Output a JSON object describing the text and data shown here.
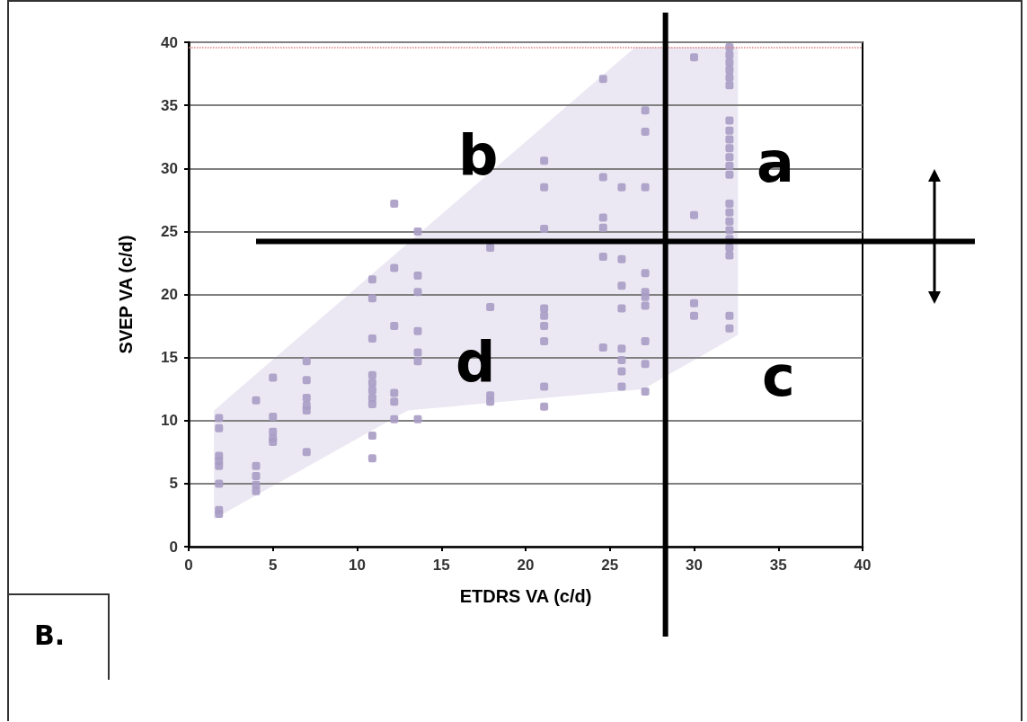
{
  "chart_data": {
    "type": "scatter",
    "xlabel": "ETDRS VA (c/d)",
    "ylabel": "SVEP VA (c/d)",
    "x": [
      1.8,
      1.8,
      1.8,
      1.8,
      1.8,
      1.8,
      1.8,
      1.8,
      4,
      4,
      4,
      4,
      4,
      5,
      5,
      5,
      5,
      5,
      7,
      7,
      7,
      7,
      7,
      7,
      10.9,
      10.9,
      10.9,
      10.9,
      10.9,
      10.9,
      10.9,
      10.9,
      10.9,
      10.9,
      12.2,
      12.2,
      12.2,
      12.2,
      12.2,
      12.2,
      13.6,
      13.6,
      13.6,
      13.6,
      13.6,
      13.6,
      13.6,
      17.9,
      17.9,
      17.9,
      17.9,
      21.1,
      21.1,
      21.1,
      21.1,
      21.1,
      21.1,
      21.1,
      21.1,
      21.1,
      24.6,
      24.6,
      24.6,
      24.6,
      24.6,
      24.6,
      25.7,
      25.7,
      25.7,
      25.7,
      25.7,
      25.7,
      25.7,
      25.7,
      27.1,
      27.1,
      27.1,
      27.1,
      27.1,
      27.1,
      27.1,
      27.1,
      27.1,
      27.1,
      30,
      30,
      30,
      30,
      32.1,
      32.1,
      32.1,
      32.1,
      32.1,
      32.1,
      32.1,
      32.1,
      32.1,
      32.1,
      32.1,
      32.1,
      32.1,
      32.1,
      32.1,
      32.1,
      32.1,
      32.1,
      32.1,
      32.1,
      32.1,
      32.1
    ],
    "values": [
      10.2,
      9.4,
      7.2,
      6.8,
      6.4,
      5.0,
      2.9,
      2.6,
      11.6,
      6.4,
      5.6,
      4.9,
      4.4,
      13.4,
      10.3,
      9.1,
      8.6,
      8.3,
      14.7,
      13.2,
      11.8,
      11.2,
      10.8,
      7.5,
      21.2,
      19.7,
      16.5,
      13.6,
      13.0,
      12.4,
      11.8,
      11.3,
      8.8,
      7.0,
      27.2,
      22.1,
      17.5,
      12.2,
      11.5,
      10.1,
      25.0,
      21.5,
      20.2,
      17.1,
      15.4,
      14.7,
      10.1,
      23.7,
      19.0,
      12.0,
      11.5,
      30.6,
      28.5,
      25.2,
      18.9,
      18.3,
      17.5,
      16.3,
      12.7,
      11.1,
      37.1,
      29.3,
      26.1,
      25.3,
      23.0,
      15.8,
      28.5,
      22.8,
      20.7,
      18.9,
      15.7,
      14.8,
      13.9,
      12.7,
      34.6,
      32.9,
      28.5,
      21.7,
      20.2,
      19.8,
      19.1,
      16.3,
      14.5,
      12.3,
      38.8,
      26.3,
      19.3,
      18.3,
      39.6,
      39.0,
      38.4,
      37.8,
      37.2,
      36.6,
      33.8,
      33.0,
      32.3,
      31.6,
      30.9,
      30.2,
      29.5,
      27.2,
      26.5,
      25.8,
      25.1,
      24.4,
      23.7,
      23.1,
      18.3,
      17.3
    ],
    "color": "#a99cc4",
    "marker": "square",
    "xlim": [
      0,
      40
    ],
    "xticks": [
      0,
      5,
      10,
      15,
      20,
      25,
      30,
      35,
      40
    ],
    "ylim": [
      0,
      40
    ],
    "yticks": [
      0,
      5,
      10,
      15,
      20,
      25,
      30,
      35,
      40
    ],
    "grid": "y",
    "ref_lines": [
      {
        "axis": "x",
        "value": 28.3,
        "color": "#000000",
        "line_style": "solid"
      },
      {
        "axis": "y",
        "value": 24.2,
        "color": "#000000",
        "line_style": "solid"
      },
      {
        "axis": "y",
        "value": 39.6,
        "color": "#e08080",
        "line_style": "dotted"
      }
    ],
    "annotations": [
      "a",
      "b",
      "c",
      "d",
      "B."
    ]
  }
}
